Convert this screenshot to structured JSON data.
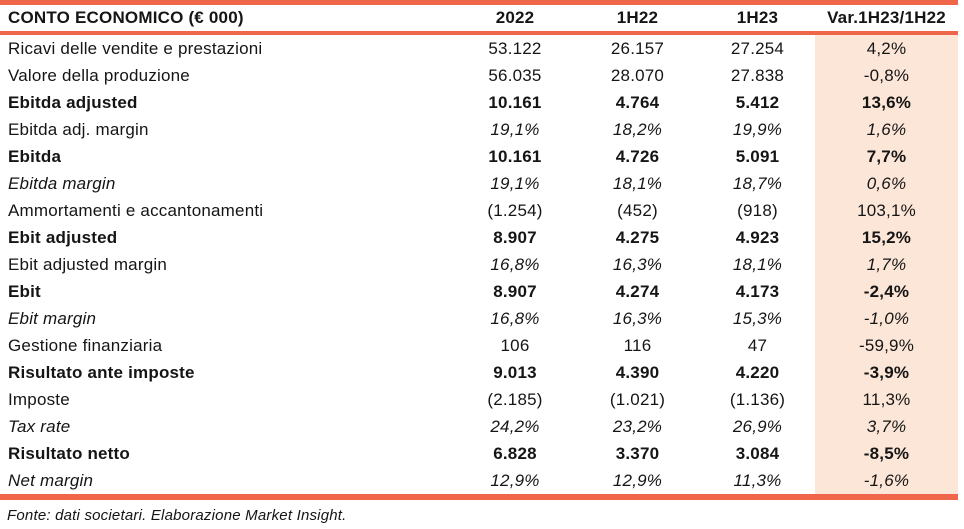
{
  "table": {
    "title": "CONTO ECONOMICO (€ 000)",
    "columns": [
      "2022",
      "1H22",
      "1H23",
      "Var.1H23/1H22"
    ],
    "rows": [
      {
        "label": "Ricavi delle vendite e prestazioni",
        "values": [
          "53.122",
          "26.157",
          "27.254",
          "4,2%"
        ],
        "style": "normal"
      },
      {
        "label": "Valore della produzione",
        "values": [
          "56.035",
          "28.070",
          "27.838",
          "-0,8%"
        ],
        "style": "normal"
      },
      {
        "label": "Ebitda adjusted",
        "values": [
          "10.161",
          "4.764",
          "5.412",
          "13,6%"
        ],
        "style": "bold"
      },
      {
        "label": "Ebitda adj. margin",
        "values": [
          "19,1%",
          "18,2%",
          "19,9%",
          "1,6%"
        ],
        "style": "italic-values"
      },
      {
        "label": "Ebitda",
        "values": [
          "10.161",
          "4.726",
          "5.091",
          "7,7%"
        ],
        "style": "bold"
      },
      {
        "label": "Ebitda margin",
        "values": [
          "19,1%",
          "18,1%",
          "18,7%",
          "0,6%"
        ],
        "style": "italic"
      },
      {
        "label": "Ammortamenti e accantonamenti",
        "values": [
          "(1.254)",
          "(452)",
          "(918)",
          "103,1%"
        ],
        "style": "normal"
      },
      {
        "label": "Ebit adjusted",
        "values": [
          "8.907",
          "4.275",
          "4.923",
          "15,2%"
        ],
        "style": "bold"
      },
      {
        "label": "Ebit adjusted margin",
        "values": [
          "16,8%",
          "16,3%",
          "18,1%",
          "1,7%"
        ],
        "style": "italic-values"
      },
      {
        "label": "Ebit",
        "values": [
          "8.907",
          "4.274",
          "4.173",
          "-2,4%"
        ],
        "style": "bold"
      },
      {
        "label": "Ebit margin",
        "values": [
          "16,8%",
          "16,3%",
          "15,3%",
          "-1,0%"
        ],
        "style": "italic"
      },
      {
        "label": "Gestione finanziaria",
        "values": [
          "106",
          "116",
          "47",
          "-59,9%"
        ],
        "style": "normal"
      },
      {
        "label": "Risultato ante imposte",
        "values": [
          "9.013",
          "4.390",
          "4.220",
          "-3,9%"
        ],
        "style": "bold"
      },
      {
        "label": "Imposte",
        "values": [
          "(2.185)",
          "(1.021)",
          "(1.136)",
          "11,3%"
        ],
        "style": "normal"
      },
      {
        "label": "Tax rate",
        "values": [
          "24,2%",
          "23,2%",
          "26,9%",
          "3,7%"
        ],
        "style": "italic"
      },
      {
        "label": "Risultato netto",
        "values": [
          "6.828",
          "3.370",
          "3.084",
          "-8,5%"
        ],
        "style": "bold"
      },
      {
        "label": "Net margin",
        "values": [
          "12,9%",
          "12,9%",
          "11,3%",
          "-1,6%"
        ],
        "style": "italic"
      }
    ],
    "footnote": "Fonte: dati societari. Elaborazione Market Insight.",
    "colors": {
      "accent": "#F0664B",
      "highlight_column_bg": "#FCE6D7",
      "text": "#151515"
    }
  }
}
